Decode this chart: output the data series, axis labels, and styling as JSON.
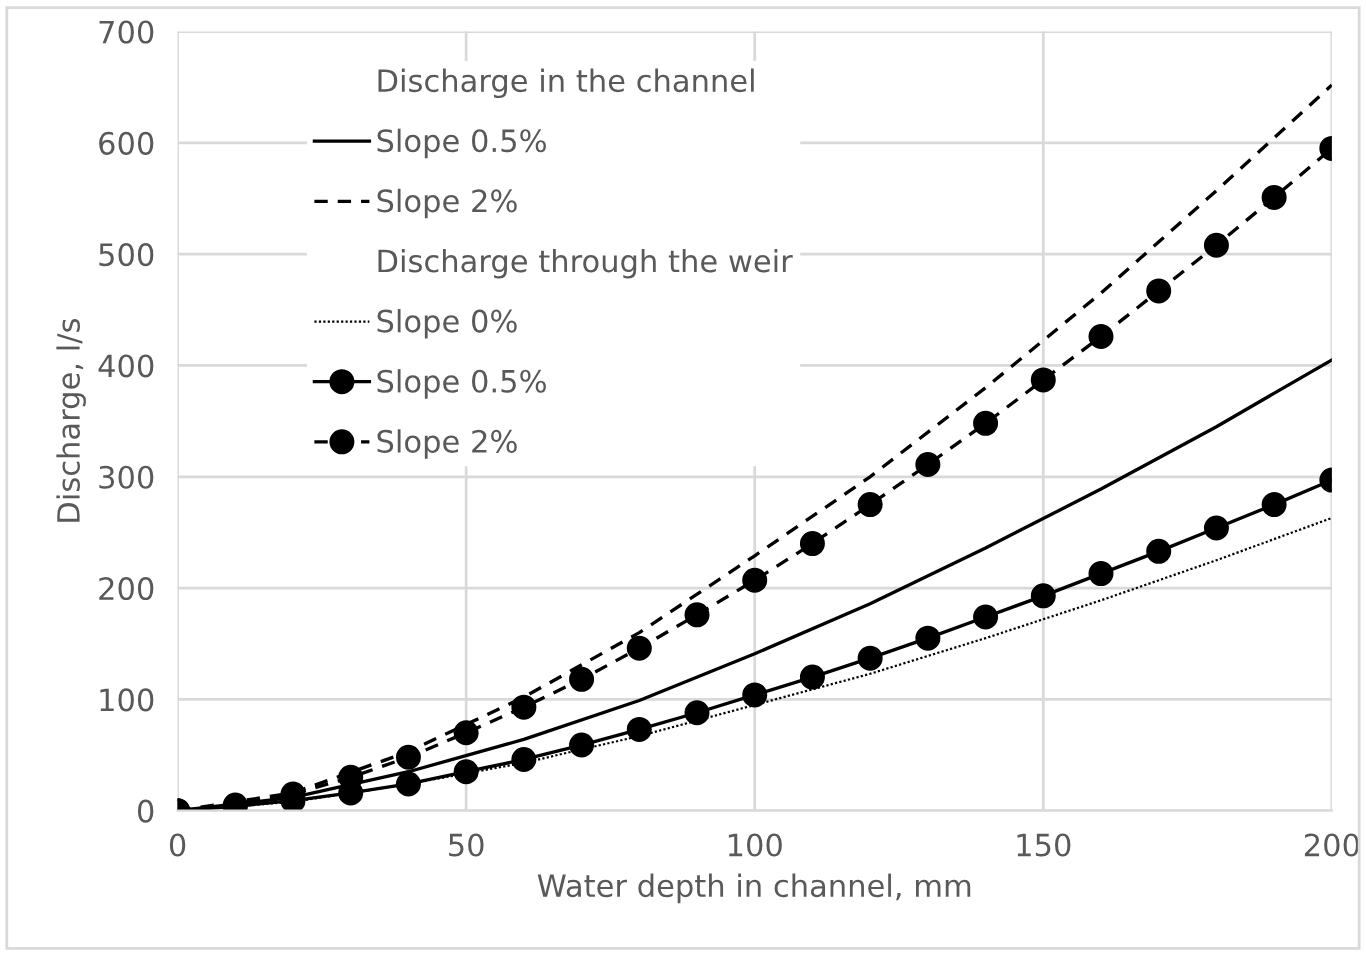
{
  "chart_data": {
    "type": "line",
    "xlabel": "Water depth in channel, mm",
    "ylabel": "Discharge, l/s",
    "annotations": [
      "Discharge in the channel",
      "Discharge through the weir"
    ],
    "xlim": [
      0,
      200
    ],
    "xticks": [
      0,
      50,
      100,
      150,
      200
    ],
    "ylim": [
      0,
      700
    ],
    "yticks": [
      0,
      100,
      200,
      300,
      400,
      500,
      600,
      700
    ],
    "grid": true,
    "legend": "top left",
    "series": [
      {
        "name": "Slope 0.5%",
        "color": "#000000",
        "line_style": "solid",
        "marker": "none",
        "x": [
          0,
          20,
          40,
          60,
          80,
          100,
          120,
          140,
          160,
          180,
          200
        ],
        "values": [
          0,
          12,
          35,
          64,
          99,
          141,
          186,
          236,
          289,
          345,
          405
        ]
      },
      {
        "name": "Slope 2%",
        "color": "#000000",
        "line_style": "dashed",
        "marker": "none",
        "x": [
          0,
          20,
          40,
          60,
          80,
          100,
          120,
          140,
          160,
          180,
          200
        ],
        "values": [
          0,
          16,
          53,
          102,
          160,
          229,
          300,
          380,
          465,
          557,
          652
        ]
      },
      {
        "name": "Slope 0%",
        "color": "#000000",
        "line_style": "dotted",
        "marker": "none",
        "x": [
          0,
          20,
          40,
          60,
          80,
          100,
          120,
          140,
          160,
          180,
          200
        ],
        "values": [
          0,
          8,
          24,
          43,
          67,
          95,
          123,
          155,
          189,
          225,
          263
        ]
      },
      {
        "name": "Slope 0.5%",
        "color": "#000000",
        "line_style": "solid",
        "marker": "circle",
        "x": [
          0,
          10,
          20,
          30,
          40,
          50,
          60,
          70,
          80,
          90,
          100,
          110,
          120,
          130,
          140,
          150,
          160,
          170,
          180,
          190,
          200
        ],
        "values": [
          0,
          4,
          9,
          16,
          24,
          35,
          46,
          59,
          73,
          88,
          104,
          120,
          137,
          155,
          174,
          193,
          213,
          233,
          254,
          275,
          297
        ]
      },
      {
        "name": "Slope 2%",
        "color": "#000000",
        "line_style": "dashed",
        "marker": "circle",
        "x": [
          0,
          10,
          20,
          30,
          40,
          50,
          60,
          70,
          80,
          90,
          100,
          110,
          120,
          130,
          140,
          150,
          160,
          170,
          180,
          190,
          200
        ],
        "values": [
          0,
          5,
          15,
          30,
          48,
          70,
          93,
          118,
          146,
          176,
          207,
          240,
          275,
          311,
          348,
          387,
          426,
          467,
          508,
          551,
          595
        ]
      }
    ]
  }
}
